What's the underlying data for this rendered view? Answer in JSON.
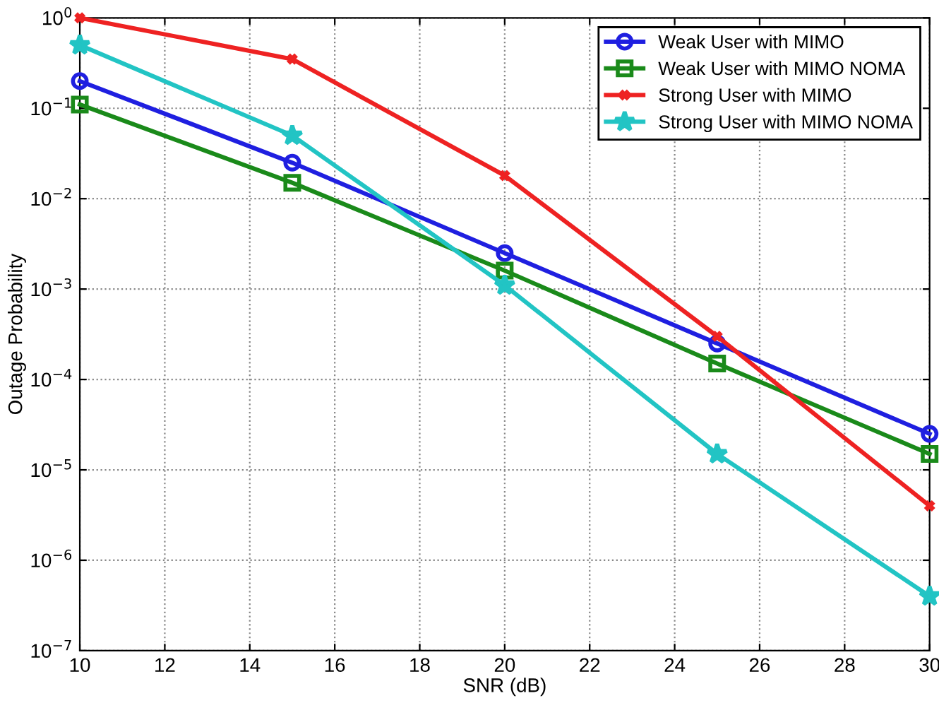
{
  "chart_data": {
    "type": "line",
    "xlabel": "SNR (dB)",
    "ylabel": "Outage Probability",
    "log": "y",
    "grid": true,
    "legend": "top right",
    "line_style": "solid",
    "x": [
      10,
      15,
      20,
      25,
      30
    ],
    "xlim": [
      10,
      30
    ],
    "xticks": [
      10,
      12,
      14,
      16,
      18,
      20,
      22,
      24,
      26,
      28,
      30
    ],
    "ylim": [
      1e-07,
      1
    ],
    "yticks": [
      {
        "value": 1e-07,
        "label": "10$^{−7}$"
      },
      {
        "value": 1e-06,
        "label": "10$^{−6}$"
      },
      {
        "value": 1e-05,
        "label": "10$^{−5}$"
      },
      {
        "value": 0.0001,
        "label": "10$^{−4}$"
      },
      {
        "value": 0.001,
        "label": "10$^{−3}$"
      },
      {
        "value": 0.01,
        "label": "10$^{−2}$"
      },
      {
        "value": 0.1,
        "label": "10$^{−1}$"
      },
      {
        "value": 1,
        "label": "10$^{0}$"
      }
    ],
    "series": [
      {
        "name": "Weak User with MIMO",
        "color": "#1f1fe0",
        "marker": "circle",
        "values": [
          0.2,
          0.025,
          0.0025,
          0.00025,
          2.5e-05
        ]
      },
      {
        "name": "Weak User with MIMO NOMA",
        "color": "#1a8a1a",
        "marker": "square",
        "values": [
          0.11,
          0.015,
          0.0016,
          0.00015,
          1.5e-05
        ]
      },
      {
        "name": "Strong User with MIMO",
        "color": "#ee2222",
        "marker": "cross",
        "values": [
          1.0,
          0.35,
          0.018,
          0.0003,
          4e-06
        ]
      },
      {
        "name": "Strong User with MIMO NOMA",
        "color": "#22c4c4",
        "marker": "star",
        "values": [
          0.5,
          0.05,
          0.0011,
          1.5e-05,
          4e-07
        ]
      }
    ]
  }
}
